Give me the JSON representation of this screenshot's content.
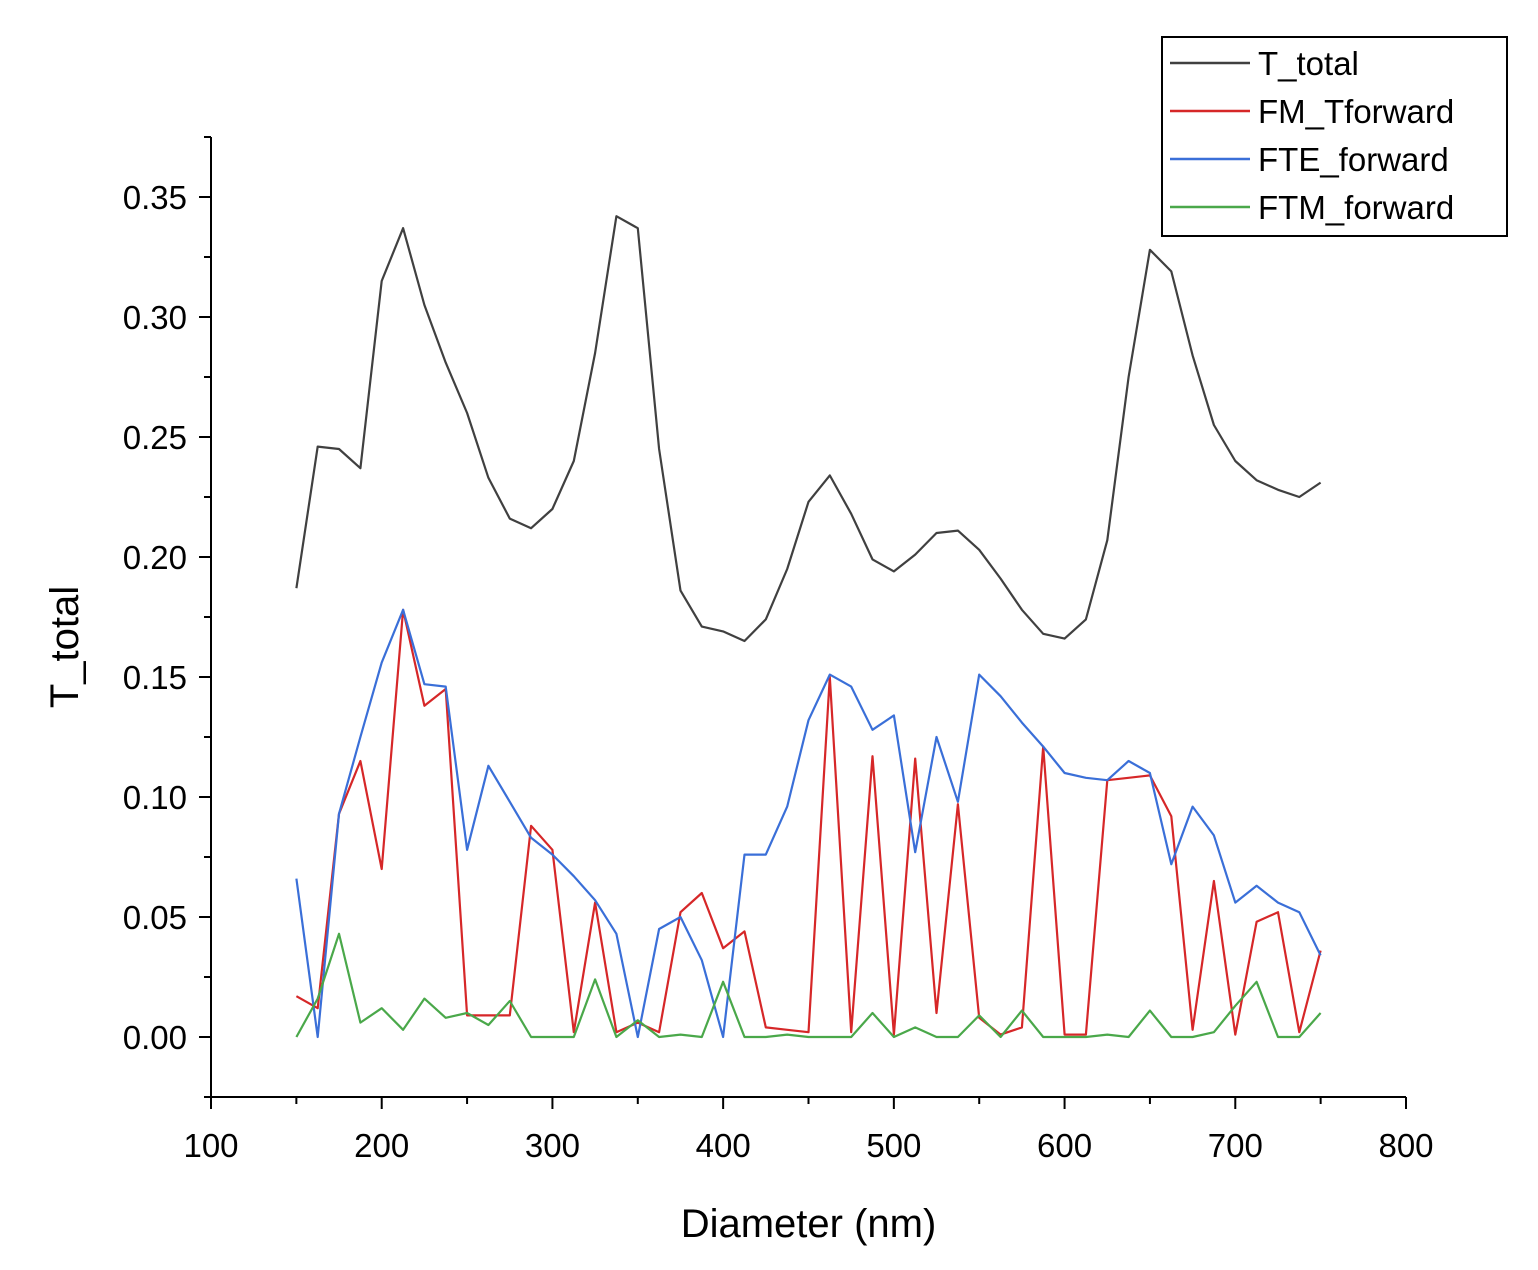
{
  "chart_data": {
    "type": "line",
    "xlabel": "Diameter (nm)",
    "ylabel": "T_total",
    "xlim": [
      100,
      800
    ],
    "ylim": [
      -0.025,
      0.375
    ],
    "x_ticks": [
      100,
      200,
      300,
      400,
      500,
      600,
      700,
      800
    ],
    "y_ticks": [
      0.0,
      0.05,
      0.1,
      0.15,
      0.2,
      0.25,
      0.3,
      0.35
    ],
    "x_tick_labels": [
      "100",
      "200",
      "300",
      "400",
      "500",
      "600",
      "700",
      "800"
    ],
    "y_tick_labels": [
      "0.00",
      "0.05",
      "0.10",
      "0.15",
      "0.20",
      "0.25",
      "0.30",
      "0.35"
    ],
    "grid": false,
    "legend_position": "top-right",
    "x": [
      150,
      162.5,
      175,
      187.5,
      200,
      212.5,
      225,
      237.5,
      250,
      262.5,
      275,
      287.5,
      300,
      312.5,
      325,
      337.5,
      350,
      362.5,
      375,
      387.5,
      400,
      412.5,
      425,
      437.5,
      450,
      462.5,
      475,
      487.5,
      500,
      512.5,
      525,
      537.5,
      550,
      562.5,
      575,
      587.5,
      600,
      612.5,
      625,
      637.5,
      650,
      662.5,
      675,
      687.5,
      700,
      712.5,
      725,
      737.5,
      750
    ],
    "series": [
      {
        "name": "T_total",
        "color": "#404040",
        "values": [
          0.187,
          0.246,
          0.245,
          0.237,
          0.315,
          0.337,
          0.305,
          0.281,
          0.26,
          0.233,
          0.216,
          0.212,
          0.22,
          0.24,
          0.285,
          0.342,
          0.337,
          0.245,
          0.186,
          0.171,
          0.169,
          0.165,
          0.174,
          0.195,
          0.223,
          0.234,
          0.218,
          0.199,
          0.194,
          0.201,
          0.21,
          0.211,
          0.203,
          0.191,
          0.178,
          0.168,
          0.166,
          0.174,
          0.207,
          0.275,
          0.328,
          0.319,
          0.284,
          0.255,
          0.24,
          0.232,
          0.228,
          0.225,
          0.231
        ]
      },
      {
        "name": "FM_Tforward",
        "color": "#d62728",
        "values": [
          0.017,
          0.012,
          0.093,
          0.115,
          0.07,
          0.178,
          0.138,
          0.145,
          0.009,
          0.009,
          0.009,
          0.088,
          0.078,
          0.002,
          0.056,
          0.002,
          0.006,
          0.002,
          0.052,
          0.06,
          0.037,
          0.044,
          0.004,
          0.003,
          0.002,
          0.15,
          0.002,
          0.117,
          0.001,
          0.116,
          0.01,
          0.097,
          0.008,
          0.001,
          0.004,
          0.121,
          0.001,
          0.001,
          0.107,
          0.108,
          0.109,
          0.092,
          0.003,
          0.065,
          0.001,
          0.048,
          0.052,
          0.002,
          0.036
        ]
      },
      {
        "name": "FTE_forward",
        "color": "#3a6fd8",
        "values": [
          0.066,
          0.0,
          0.093,
          0.125,
          0.156,
          0.178,
          0.147,
          0.146,
          0.078,
          0.113,
          0.098,
          0.083,
          0.076,
          0.067,
          0.057,
          0.043,
          0.0,
          0.045,
          0.05,
          0.032,
          0.0,
          0.076,
          0.076,
          0.096,
          0.132,
          0.151,
          0.146,
          0.128,
          0.134,
          0.077,
          0.125,
          0.098,
          0.151,
          0.142,
          0.131,
          0.121,
          0.11,
          0.108,
          0.107,
          0.115,
          0.11,
          0.072,
          0.096,
          0.084,
          0.056,
          0.063,
          0.056,
          0.052,
          0.034
        ]
      },
      {
        "name": "FTM_forward",
        "color": "#4aa84a",
        "values": [
          0.0,
          0.016,
          0.043,
          0.006,
          0.012,
          0.003,
          0.016,
          0.008,
          0.01,
          0.005,
          0.015,
          0.0,
          0.0,
          0.0,
          0.024,
          0.0,
          0.007,
          0.0,
          0.001,
          0.0,
          0.023,
          0.0,
          0.0,
          0.001,
          0.0,
          0.0,
          0.0,
          0.01,
          0.0,
          0.004,
          0.0,
          0.0,
          0.009,
          0.0,
          0.011,
          0.0,
          0.0,
          0.0,
          0.001,
          0.0,
          0.011,
          0.0,
          0.0,
          0.002,
          0.013,
          0.023,
          0.0,
          0.0,
          0.01
        ]
      }
    ]
  }
}
